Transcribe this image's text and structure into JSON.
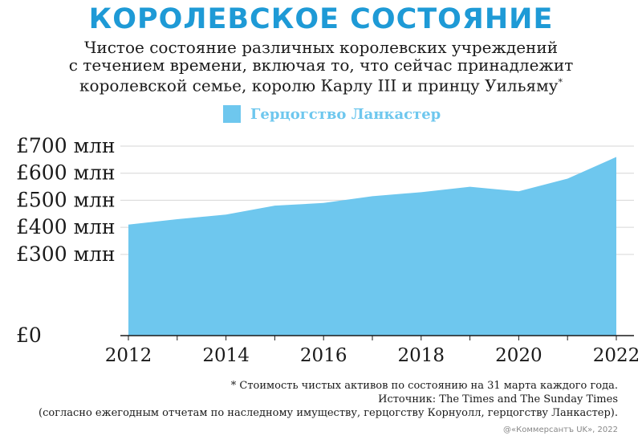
{
  "title": "КОРОЛЕВСКОЕ СОСТОЯНИЕ",
  "subtitle": {
    "line1": "Чистое состояние различных королевских учреждений",
    "line2": "с течением времени, включая то, что сейчас принадлежит",
    "line3": "королевской семье, королю Карлу III и принцу Уильяму",
    "marker": "*"
  },
  "colors": {
    "title": "#1e9ad6",
    "series": "#6ec7ee"
  },
  "chart_data": {
    "type": "area",
    "series": [
      {
        "name": "Герцогство Ланкастер",
        "x": [
          2012,
          2013,
          2014,
          2015,
          2016,
          2017,
          2018,
          2019,
          2020,
          2021,
          2022
        ],
        "values": [
          410,
          430,
          447,
          480,
          490,
          515,
          530,
          550,
          533,
          580,
          660
        ]
      }
    ],
    "ylim": [
      0,
      700
    ],
    "xlim": [
      2012,
      2022
    ],
    "y_ticks": [
      0,
      300,
      400,
      500,
      600,
      700
    ],
    "y_tick_labels": [
      "£0",
      "£300 млн",
      "£400 млн",
      "£500 млн",
      "£600 млн",
      "£700 млн"
    ],
    "x_ticks": [
      2012,
      2014,
      2016,
      2018,
      2020,
      2022
    ],
    "x_tick_labels": [
      "2012",
      "2014",
      "2016",
      "2018",
      "2020",
      "2022"
    ],
    "grid": true,
    "legend": "top-center"
  },
  "footnote": {
    "line1": "* Стоимость чистых активов по состоянию на 31 марта каждого года.",
    "line2": "Источник: The Times and The Sunday Times",
    "line3": "(согласно ежегодным отчетам по наследному имуществу, герцогству Корнуолл, герцогству Ланкастер)."
  },
  "credit": "@«Коммерсантъ UK», 2022"
}
